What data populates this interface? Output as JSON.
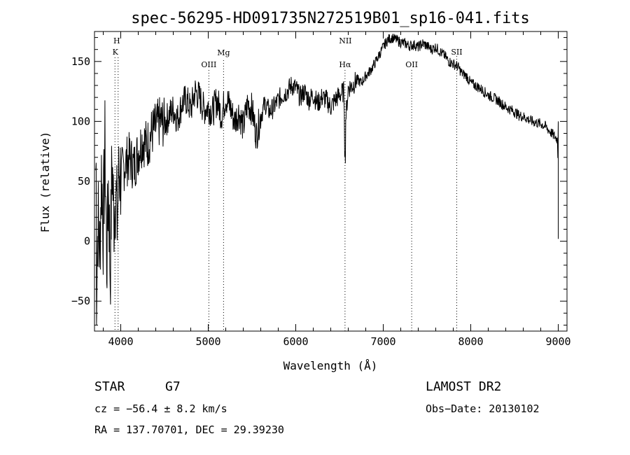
{
  "chart_data": {
    "type": "line",
    "title": "spec-56295-HD091735N272519B01_sp16-041.fits",
    "xlabel": "Wavelength (Å)",
    "ylabel": "Flux (relative)",
    "xlim": [
      3700,
      9100
    ],
    "ylim": [
      -75,
      175
    ],
    "xticks": [
      4000,
      5000,
      6000,
      7000,
      8000,
      9000
    ],
    "yticks": [
      -50,
      0,
      50,
      100,
      150
    ],
    "grid": false,
    "lines": [
      {
        "name": "H",
        "x": 3970,
        "label_top": "H",
        "label_bottom": "K",
        "x2": 3934
      },
      {
        "name": "OIII",
        "x": 5007,
        "label": "OIII"
      },
      {
        "name": "Mg",
        "x": 5175,
        "label": "Mg"
      },
      {
        "name": "NII",
        "x": 6583,
        "label": "NII"
      },
      {
        "name": "Ha",
        "x": 6563,
        "label": "Hα"
      },
      {
        "name": "OII",
        "x": 7325,
        "label": "OII"
      },
      {
        "name": "SII",
        "x": 7840,
        "label": "SII"
      }
    ],
    "series": [
      {
        "x": [
          3720,
          3740,
          3760,
          3780,
          3800,
          3820,
          3840,
          3860,
          3880,
          3900,
          3920,
          3940,
          3960,
          3980,
          4000,
          4050,
          4100,
          4150,
          4200,
          4250,
          4300,
          4350,
          4400,
          4450,
          4500,
          4550,
          4600,
          4650,
          4700,
          4750,
          4800,
          4850,
          4900,
          4950,
          5000,
          5050,
          5100,
          5150,
          5200,
          5250,
          5300,
          5350,
          5400,
          5450,
          5500,
          5550,
          5600,
          5650,
          5700,
          5750,
          5800,
          5850,
          5900,
          5950,
          6000,
          6050,
          6100,
          6150,
          6200,
          6250,
          6300,
          6350,
          6400,
          6450,
          6500,
          6550,
          6563,
          6600,
          6650,
          6700,
          6750,
          6800,
          6850,
          6900,
          6950,
          7000,
          7050,
          7100,
          7150,
          7200,
          7250,
          7300,
          7350,
          7400,
          7450,
          7500,
          7550,
          7600,
          7650,
          7700,
          7750,
          7800,
          7850,
          7900,
          7950,
          8000,
          8050,
          8100,
          8150,
          8200,
          8250,
          8300,
          8350,
          8400,
          8450,
          8500,
          8550,
          8600,
          8650,
          8700,
          8750,
          8800,
          8850,
          8900,
          8950,
          8990,
          9000
        ],
        "y": [
          -45,
          20,
          -10,
          60,
          10,
          80,
          -20,
          50,
          -30,
          70,
          20,
          45,
          15,
          60,
          55,
          65,
          70,
          62,
          75,
          85,
          80,
          90,
          95,
          100,
          98,
          105,
          110,
          102,
          115,
          118,
          110,
          125,
          120,
          110,
          112,
          108,
          118,
          105,
          120,
          112,
          100,
          108,
          95,
          115,
          110,
          88,
          105,
          115,
          108,
          112,
          118,
          122,
          125,
          130,
          128,
          120,
          125,
          118,
          122,
          115,
          120,
          118,
          112,
          118,
          122,
          125,
          95,
          128,
          130,
          135,
          132,
          138,
          142,
          148,
          155,
          162,
          168,
          170,
          168,
          166,
          165,
          163,
          164,
          162,
          165,
          163,
          160,
          162,
          158,
          155,
          150,
          148,
          146,
          140,
          138,
          132,
          130,
          128,
          125,
          122,
          120,
          118,
          115,
          112,
          110,
          108,
          105,
          104,
          102,
          100,
          99,
          98,
          96,
          92,
          88,
          85,
          60
        ]
      }
    ],
    "annotations": {
      "star_type": "STAR",
      "subclass": "G7",
      "survey": "LAMOST DR2",
      "cz": "cz = −56.4 ± 8.2 km/s",
      "obs_date": "Obs−Date: 20130102",
      "radec": "RA = 137.70701, DEC =  29.39230"
    }
  }
}
